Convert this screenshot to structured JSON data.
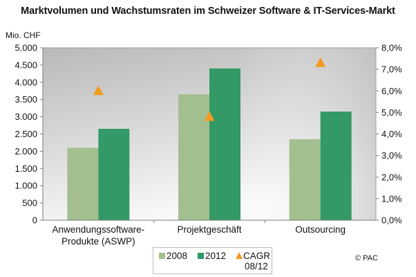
{
  "chart_data": {
    "type": "bar",
    "title": "Marktvolumen und Wachstumsraten im Schweizer Software & IT-Services-Markt",
    "ylabel": "Mio. CHF",
    "xlabel": "",
    "categories": [
      "Anwendungssoftware-\nProdukte (ASWP)",
      "Projektgeschäft",
      "Outsourcing"
    ],
    "category_lines": [
      [
        "Anwendungssoftware-",
        "Produkte (ASWP)"
      ],
      [
        "Projektgeschäft"
      ],
      [
        "Outsourcing"
      ]
    ],
    "series": [
      {
        "name": "2008",
        "type": "bar",
        "axis": "left",
        "color": "#a3bf8f",
        "values": [
          2100,
          3650,
          2350
        ]
      },
      {
        "name": "2012",
        "type": "bar",
        "axis": "left",
        "color": "#339966",
        "values": [
          2650,
          4400,
          3150
        ]
      },
      {
        "name": "CAGR 08/12",
        "type": "scatter",
        "marker": "triangle",
        "axis": "right",
        "color": "#f39a1f",
        "values": [
          6.0,
          4.8,
          7.3
        ]
      }
    ],
    "ylim": [
      0,
      5000
    ],
    "y_ticks": [
      "0",
      "500",
      "1.000",
      "1.500",
      "2.000",
      "2.500",
      "3.000",
      "3.500",
      "4.000",
      "4.500",
      "5.000"
    ],
    "y2lim": [
      0,
      8
    ],
    "y2_ticks": [
      "0,0%",
      "1,0%",
      "2,0%",
      "3,0%",
      "4,0%",
      "5,0%",
      "6,0%",
      "7,0%",
      "8,0%"
    ],
    "grid": false,
    "legend": {
      "placement": "bottom-center",
      "entries": [
        {
          "label": "2008",
          "color": "#a3bf8f"
        },
        {
          "label": "2012",
          "color": "#339966"
        },
        {
          "label_line1": "CAGR",
          "label_line2": "08/12",
          "color": "#f39a1f"
        }
      ]
    },
    "source": "© PAC"
  }
}
